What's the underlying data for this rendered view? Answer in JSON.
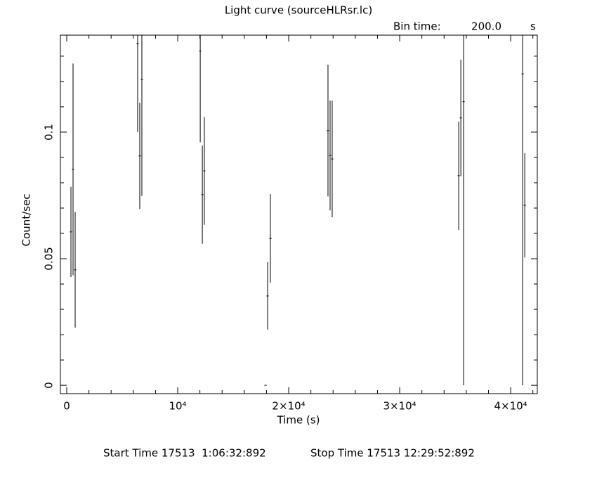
{
  "chart_data": {
    "type": "errorbar",
    "title": "Light curve (sourceHLRsr.lc)",
    "bin_time_label": "Bin time:",
    "bin_time": "200.0",
    "bin_time_unit": "s",
    "x_label": "Time (s)",
    "y_label": "Count/sec",
    "start_time": "Start Time 17513  1:06:32:892",
    "stop_time": "Stop Time 17513 12:29:52:892",
    "xlim": [
      -570,
      42400
    ],
    "ylim": [
      -0.0033,
      0.1383
    ],
    "xticks": [
      {
        "value": 0,
        "label": "0"
      },
      {
        "value": 10000,
        "label": "10⁴"
      },
      {
        "value": 20000,
        "label": "2×10⁴"
      },
      {
        "value": 30000,
        "label": "3×10⁴"
      },
      {
        "value": 40000,
        "label": "4×10⁴"
      }
    ],
    "xminorticks": [
      2000,
      4000,
      6000,
      8000,
      12000,
      14000,
      16000,
      18000,
      22000,
      24000,
      26000,
      28000,
      32000,
      34000,
      36000,
      38000,
      42000
    ],
    "yticks": [
      0,
      0.05,
      0.1
    ],
    "yminorticks": [
      0.01,
      0.02,
      0.03,
      0.04,
      0.06,
      0.07,
      0.08,
      0.09,
      0.11,
      0.12,
      0.13
    ],
    "color": "#000000",
    "series": [
      {
        "x": [
          380,
          570,
          760,
          6390,
          6580,
          6770,
          12030,
          12220,
          12400,
          17910,
          18100,
          18350,
          23540,
          23730,
          23920,
          35320,
          35510,
          35760,
          41080,
          41270
        ],
        "xerr": [
          100,
          100,
          100,
          100,
          100,
          100,
          100,
          100,
          100,
          100,
          100,
          100,
          100,
          100,
          100,
          100,
          100,
          100,
          100,
          100
        ],
        "values": [
          0.0606,
          0.0853,
          0.0456,
          0.135,
          0.0906,
          0.1208,
          0.132,
          0.0753,
          0.0847,
          0.0,
          0.0353,
          0.058,
          0.1006,
          0.0908,
          0.0894,
          0.0828,
          0.1056,
          0.112,
          0.123,
          0.0711
        ],
        "yerr": [
          0.0178,
          0.0418,
          0.0228,
          0.035,
          0.021,
          0.046,
          0.036,
          0.0194,
          0.0213,
          0.0,
          0.0133,
          0.0175,
          0.026,
          0.0217,
          0.023,
          0.0214,
          0.023,
          0.112,
          0.123,
          0.0206
        ]
      }
    ]
  }
}
